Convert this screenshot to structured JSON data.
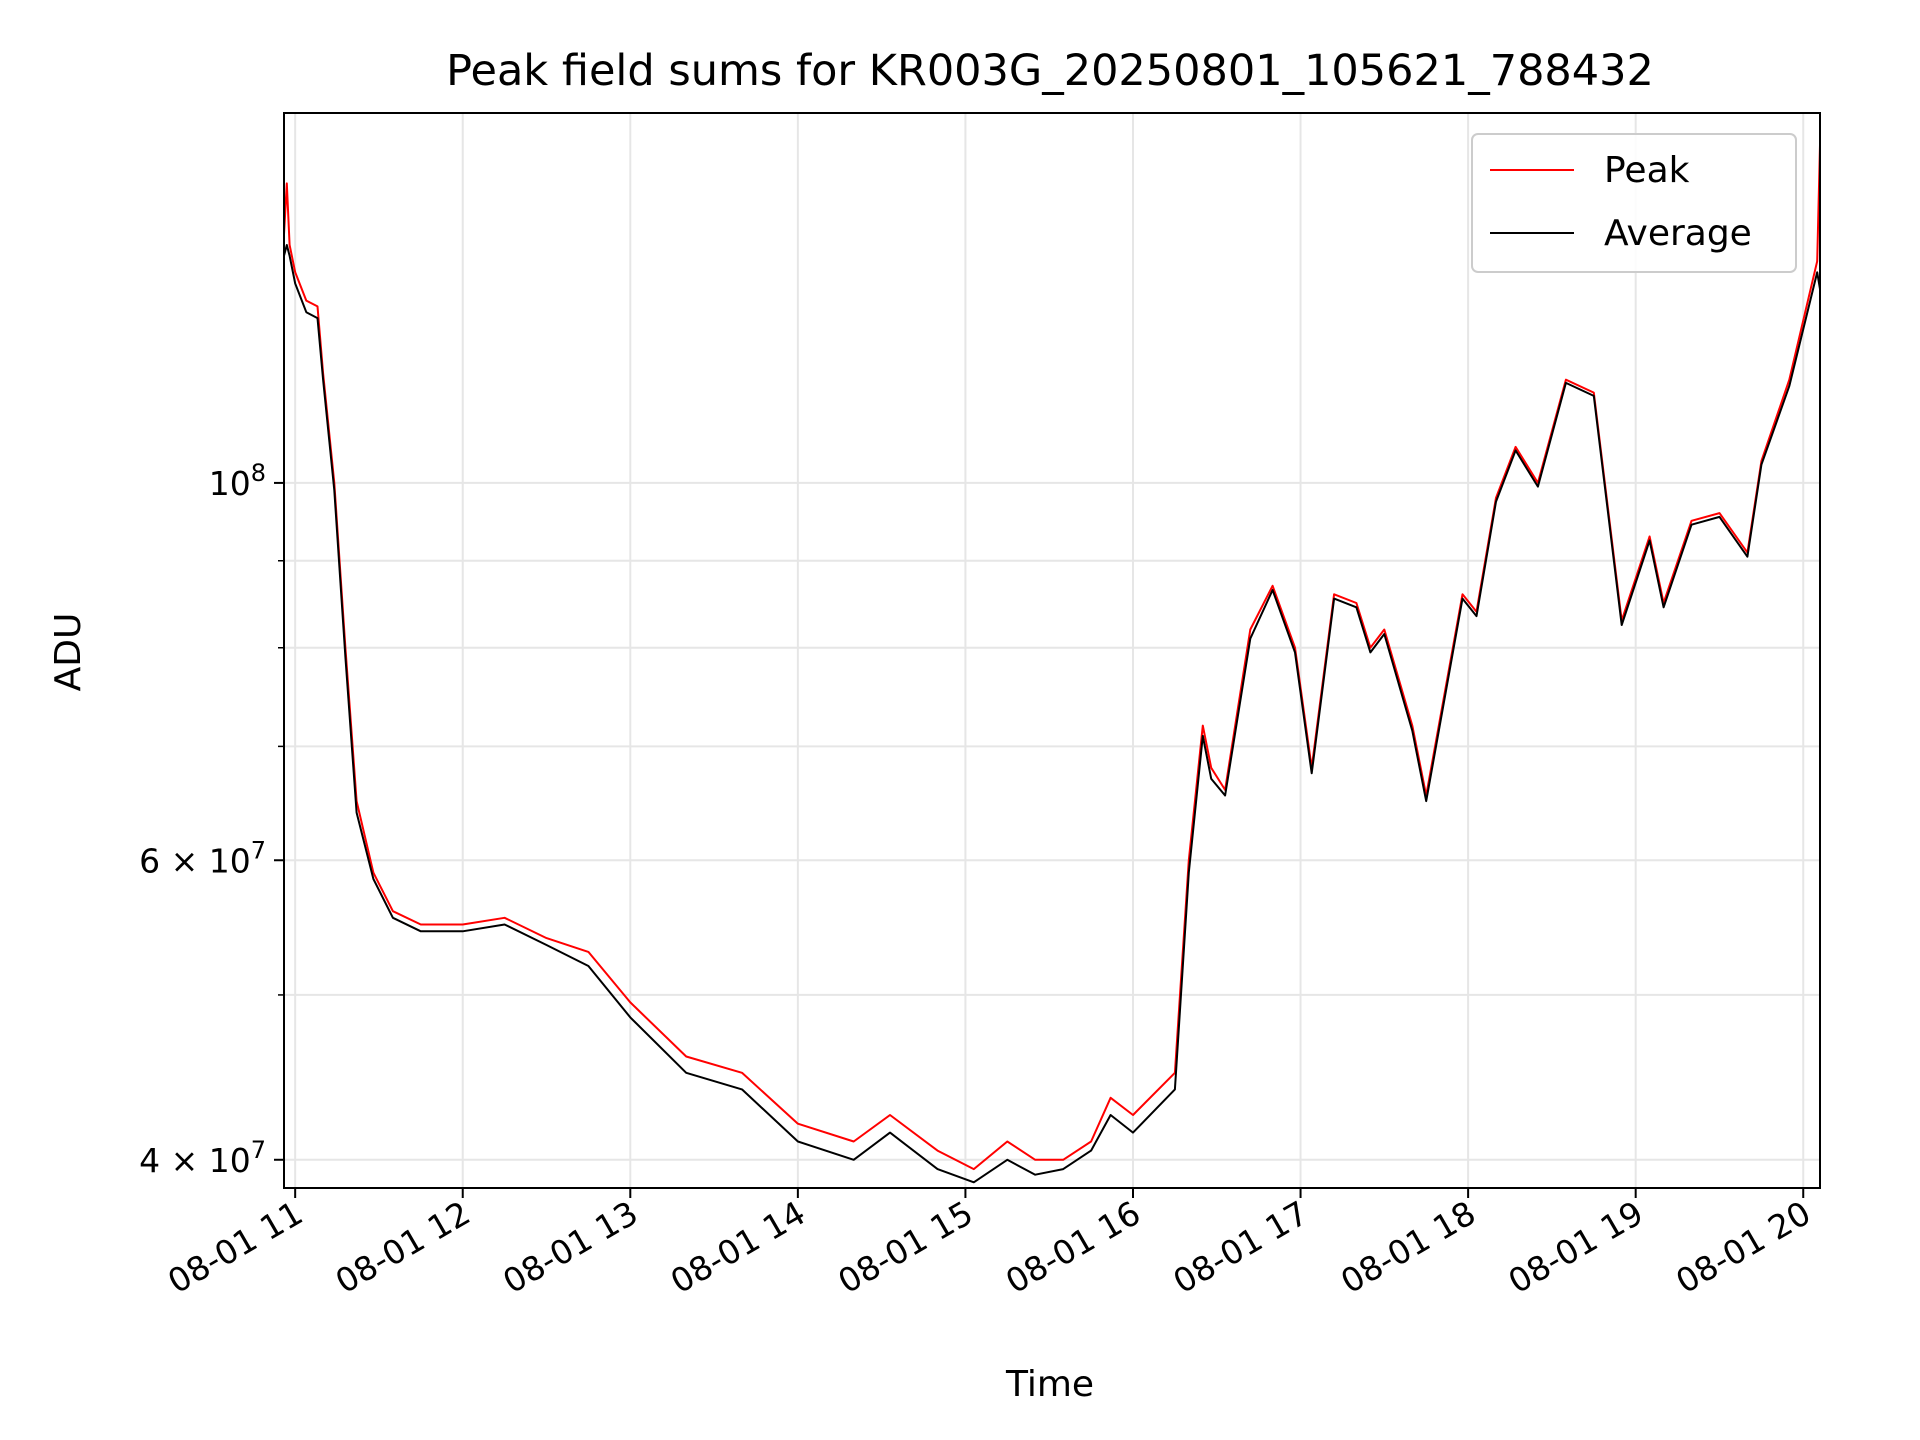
{
  "chart_data": {
    "type": "line",
    "title": "Peak field sums for KR003G_20250801_105621_788432",
    "xlabel": "Time",
    "ylabel": "ADU",
    "y_scale": "log",
    "xlim": [
      "08-01 10:56",
      "08-01 20:06"
    ],
    "ylim": [
      38500000,
      165000000
    ],
    "x_ticks": [
      "08-01 11",
      "08-01 12",
      "08-01 13",
      "08-01 14",
      "08-01 15",
      "08-01 16",
      "08-01 17",
      "08-01 18",
      "08-01 19",
      "08-01 20"
    ],
    "y_ticks": [
      {
        "value": 40000000,
        "label": "4 × 10^7"
      },
      {
        "value": 60000000,
        "label": "6 × 10^7"
      },
      {
        "value": 100000000,
        "label": "10^8"
      }
    ],
    "y_minor_ticks": [
      50000000,
      70000000,
      80000000,
      90000000
    ],
    "grid": true,
    "legend": "top-right",
    "colors": {
      "peak": "#ff0000",
      "average": "#000000"
    },
    "series": [
      {
        "name": "Peak",
        "x": [
          "08-01 10:56",
          "08-01 10:57",
          "08-01 10:58",
          "08-01 11:00",
          "08-01 11:04",
          "08-01 11:08",
          "08-01 11:10",
          "08-01 11:14",
          "08-01 11:18",
          "08-01 11:22",
          "08-01 11:28",
          "08-01 11:35",
          "08-01 11:45",
          "08-01 12:00",
          "08-01 12:15",
          "08-01 12:30",
          "08-01 12:45",
          "08-01 13:00",
          "08-01 13:20",
          "08-01 13:40",
          "08-01 14:00",
          "08-01 14:20",
          "08-01 14:33",
          "08-01 14:50",
          "08-01 15:03",
          "08-01 15:15",
          "08-01 15:25",
          "08-01 15:35",
          "08-01 15:45",
          "08-01 15:52",
          "08-01 16:00",
          "08-01 16:15",
          "08-01 16:20",
          "08-01 16:25",
          "08-01 16:28",
          "08-01 16:33",
          "08-01 16:42",
          "08-01 16:50",
          "08-01 16:58",
          "08-01 17:04",
          "08-01 17:12",
          "08-01 17:20",
          "08-01 17:25",
          "08-01 17:30",
          "08-01 17:40",
          "08-01 17:45",
          "08-01 17:58",
          "08-01 18:03",
          "08-01 18:10",
          "08-01 18:17",
          "08-01 18:25",
          "08-01 18:35",
          "08-01 18:45",
          "08-01 18:55",
          "08-01 19:05",
          "08-01 19:10",
          "08-01 19:20",
          "08-01 19:30",
          "08-01 19:40",
          "08-01 19:45",
          "08-01 19:55",
          "08-01 20:05",
          "08-01 20:06"
        ],
        "values": [
          140000000,
          150000000,
          138000000,
          133000000,
          128000000,
          127000000,
          116000000,
          100000000,
          80000000,
          65000000,
          59000000,
          56000000,
          55000000,
          55000000,
          55500000,
          54000000,
          53000000,
          49500000,
          46000000,
          45000000,
          42000000,
          41000000,
          42500000,
          40500000,
          39500000,
          41000000,
          40000000,
          40000000,
          41000000,
          43500000,
          42500000,
          45000000,
          60000000,
          72000000,
          68000000,
          66000000,
          82000000,
          87000000,
          80000000,
          68000000,
          86000000,
          85000000,
          80000000,
          82000000,
          72000000,
          65500000,
          86000000,
          84000000,
          98000000,
          105000000,
          100000000,
          115000000,
          113000000,
          83000000,
          93000000,
          85000000,
          95000000,
          96000000,
          91000000,
          103000000,
          115000000,
          135000000,
          158000000
        ]
      },
      {
        "name": "Average",
        "x": [
          "08-01 10:56",
          "08-01 10:57",
          "08-01 10:58",
          "08-01 11:00",
          "08-01 11:04",
          "08-01 11:08",
          "08-01 11:10",
          "08-01 11:14",
          "08-01 11:18",
          "08-01 11:22",
          "08-01 11:28",
          "08-01 11:35",
          "08-01 11:45",
          "08-01 12:00",
          "08-01 12:15",
          "08-01 12:30",
          "08-01 12:45",
          "08-01 13:00",
          "08-01 13:20",
          "08-01 13:40",
          "08-01 14:00",
          "08-01 14:20",
          "08-01 14:33",
          "08-01 14:50",
          "08-01 15:03",
          "08-01 15:15",
          "08-01 15:25",
          "08-01 15:35",
          "08-01 15:45",
          "08-01 15:52",
          "08-01 16:00",
          "08-01 16:15",
          "08-01 16:20",
          "08-01 16:25",
          "08-01 16:28",
          "08-01 16:33",
          "08-01 16:42",
          "08-01 16:50",
          "08-01 16:58",
          "08-01 17:04",
          "08-01 17:12",
          "08-01 17:20",
          "08-01 17:25",
          "08-01 17:30",
          "08-01 17:40",
          "08-01 17:45",
          "08-01 17:58",
          "08-01 18:03",
          "08-01 18:10",
          "08-01 18:17",
          "08-01 18:25",
          "08-01 18:35",
          "08-01 18:45",
          "08-01 18:55",
          "08-01 19:05",
          "08-01 19:10",
          "08-01 19:20",
          "08-01 19:30",
          "08-01 19:40",
          "08-01 19:45",
          "08-01 19:55",
          "08-01 20:05",
          "08-01 20:06"
        ],
        "values": [
          136000000,
          138000000,
          136000000,
          131000000,
          126000000,
          125000000,
          115000000,
          99000000,
          79000000,
          64000000,
          58500000,
          55500000,
          54500000,
          54500000,
          55000000,
          53500000,
          52000000,
          48500000,
          45000000,
          44000000,
          41000000,
          40000000,
          41500000,
          39500000,
          38800000,
          40000000,
          39200000,
          39500000,
          40500000,
          42500000,
          41500000,
          44000000,
          59000000,
          71000000,
          67000000,
          65500000,
          81000000,
          86500000,
          79500000,
          67500000,
          85500000,
          84500000,
          79500000,
          81500000,
          71500000,
          65000000,
          85500000,
          83500000,
          97500000,
          104500000,
          99500000,
          114500000,
          112500000,
          82500000,
          92500000,
          84500000,
          94500000,
          95500000,
          90500000,
          102500000,
          114000000,
          133000000,
          130000000
        ]
      }
    ]
  }
}
